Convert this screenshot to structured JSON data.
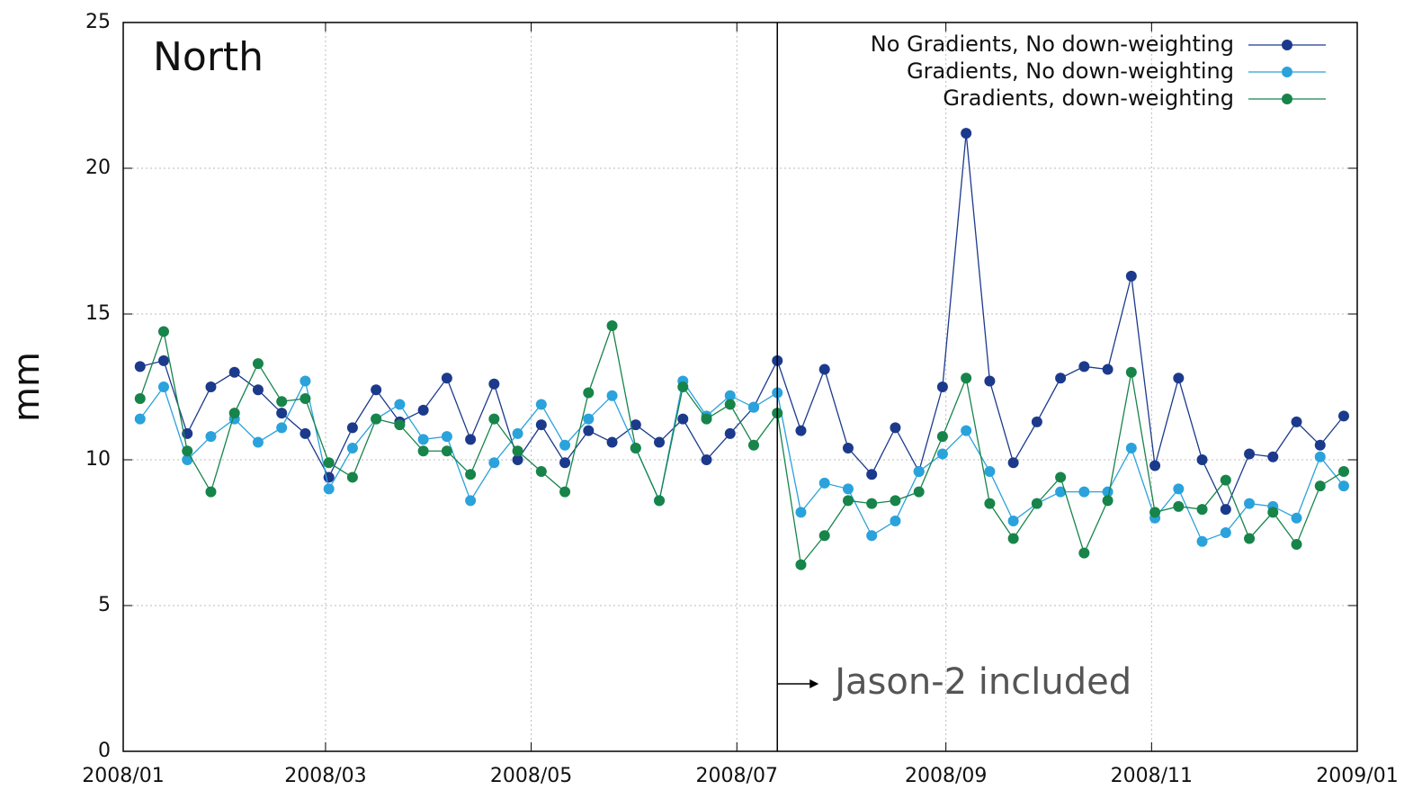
{
  "chart_data": {
    "type": "line",
    "title": "North",
    "y_label": "mm",
    "annotation": "Jason-2 included",
    "event_x": 194,
    "x": [
      5,
      12,
      19,
      26,
      33,
      40,
      47,
      54,
      61,
      68,
      75,
      82,
      89,
      96,
      103,
      110,
      117,
      124,
      131,
      138,
      145,
      152,
      159,
      166,
      173,
      180,
      187,
      194,
      201,
      208,
      215,
      222,
      229,
      236,
      243,
      250,
      257,
      264,
      271,
      278,
      285,
      292,
      299,
      306,
      313,
      320,
      327,
      334,
      341,
      348,
      355,
      362
    ],
    "series": [
      {
        "name": "No Gradients, No down-weighting",
        "color": "#1c3a8c",
        "values": [
          13.2,
          13.4,
          10.9,
          12.5,
          13.0,
          12.4,
          11.6,
          10.9,
          9.4,
          11.1,
          12.4,
          11.3,
          11.7,
          12.8,
          10.7,
          12.6,
          10.0,
          11.2,
          9.9,
          11.0,
          10.6,
          11.2,
          10.6,
          11.4,
          10.0,
          10.9,
          11.8,
          13.4,
          11.0,
          13.1,
          10.4,
          9.5,
          11.1,
          9.6,
          12.5,
          21.2,
          12.7,
          9.9,
          11.3,
          12.8,
          13.2,
          13.1,
          16.3,
          9.8,
          12.8,
          10.0,
          8.3,
          10.2,
          10.1,
          11.3,
          10.5,
          11.5
        ]
      },
      {
        "name": "Gradients, No down-weighting",
        "color": "#2aa2dc",
        "values": [
          11.4,
          12.5,
          10.0,
          10.8,
          11.4,
          10.6,
          11.1,
          12.7,
          9.0,
          10.4,
          11.4,
          11.9,
          10.7,
          10.8,
          8.6,
          9.9,
          10.9,
          11.9,
          10.5,
          11.4,
          12.2,
          10.4,
          8.6,
          12.7,
          11.5,
          12.2,
          11.8,
          12.3,
          8.2,
          9.2,
          9.0,
          7.4,
          7.9,
          9.6,
          10.2,
          11.0,
          9.6,
          7.9,
          8.5,
          8.9,
          8.9,
          8.9,
          10.4,
          8.0,
          9.0,
          7.2,
          7.5,
          8.5,
          8.4,
          8.0,
          10.1,
          9.1
        ]
      },
      {
        "name": "Gradients, down-weighting",
        "color": "#17844a",
        "values": [
          12.1,
          14.4,
          10.3,
          8.9,
          11.6,
          13.3,
          12.0,
          12.1,
          9.9,
          9.4,
          11.4,
          11.2,
          10.3,
          10.3,
          9.5,
          11.4,
          10.3,
          9.6,
          8.9,
          12.3,
          14.6,
          10.4,
          8.6,
          12.5,
          11.4,
          11.9,
          10.5,
          11.6,
          6.4,
          7.4,
          8.6,
          8.5,
          8.6,
          8.9,
          10.8,
          12.8,
          8.5,
          7.3,
          8.5,
          9.4,
          6.8,
          8.6,
          13.0,
          8.2,
          8.4,
          8.3,
          9.3,
          7.3,
          8.2,
          7.1,
          9.1,
          9.6
        ]
      }
    ],
    "xlim": [
      0,
      366
    ],
    "xticks": [
      {
        "value": 0,
        "label": "2008/01"
      },
      {
        "value": 60,
        "label": "2008/03"
      },
      {
        "value": 121,
        "label": "2008/05"
      },
      {
        "value": 182,
        "label": "2008/07"
      },
      {
        "value": 244,
        "label": "2008/09"
      },
      {
        "value": 305,
        "label": "2008/11"
      },
      {
        "value": 366,
        "label": "2009/01"
      }
    ],
    "ylim": [
      0,
      25
    ],
    "yticks": [
      0,
      5,
      10,
      15,
      20,
      25
    ],
    "grid": true,
    "legend": "top-right"
  }
}
